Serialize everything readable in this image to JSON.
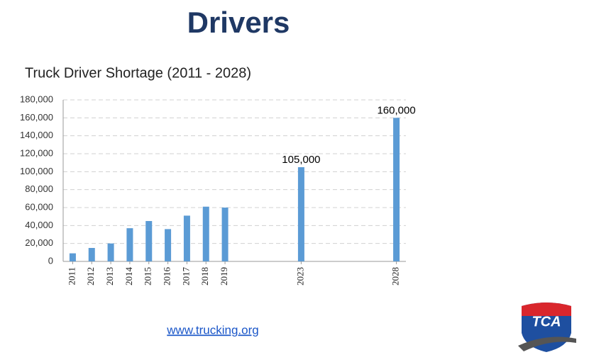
{
  "header": {
    "title": "Drivers"
  },
  "chart_data": {
    "type": "bar",
    "title": "Truck Driver Shortage (2011 - 2028)",
    "x": [
      2011,
      2012,
      2013,
      2014,
      2015,
      2016,
      2017,
      2018,
      2019,
      2023,
      2028
    ],
    "values": [
      9000,
      15000,
      20000,
      37000,
      45000,
      36000,
      51000,
      61000,
      60000,
      105000,
      160000
    ],
    "value_labels": [
      null,
      null,
      null,
      null,
      null,
      null,
      null,
      null,
      null,
      "105,000",
      "160,000"
    ],
    "color": "#5b9bd5",
    "xlim": [
      2010.5,
      2028.5
    ],
    "xticks": [
      2011,
      2012,
      2013,
      2014,
      2015,
      2016,
      2017,
      2018,
      2019,
      2023,
      2028
    ],
    "ylim": [
      0,
      180000
    ],
    "yticks": [
      0,
      {
        "value": 20000,
        "label": "20,000"
      },
      {
        "value": 40000,
        "label": "40,000"
      },
      {
        "value": 60000,
        "label": "60,000"
      },
      {
        "value": 80000,
        "label": "80,000"
      },
      {
        "value": 100000,
        "label": "100,000"
      },
      {
        "value": 120000,
        "label": "120,000"
      },
      {
        "value": 140000,
        "label": "140,000"
      },
      {
        "value": 160000,
        "label": "160,000"
      },
      {
        "value": 180000,
        "label": "180,000"
      }
    ],
    "grid": true
  },
  "footer": {
    "link": "www.trucking.org"
  },
  "logo": {
    "text": "TCA"
  }
}
